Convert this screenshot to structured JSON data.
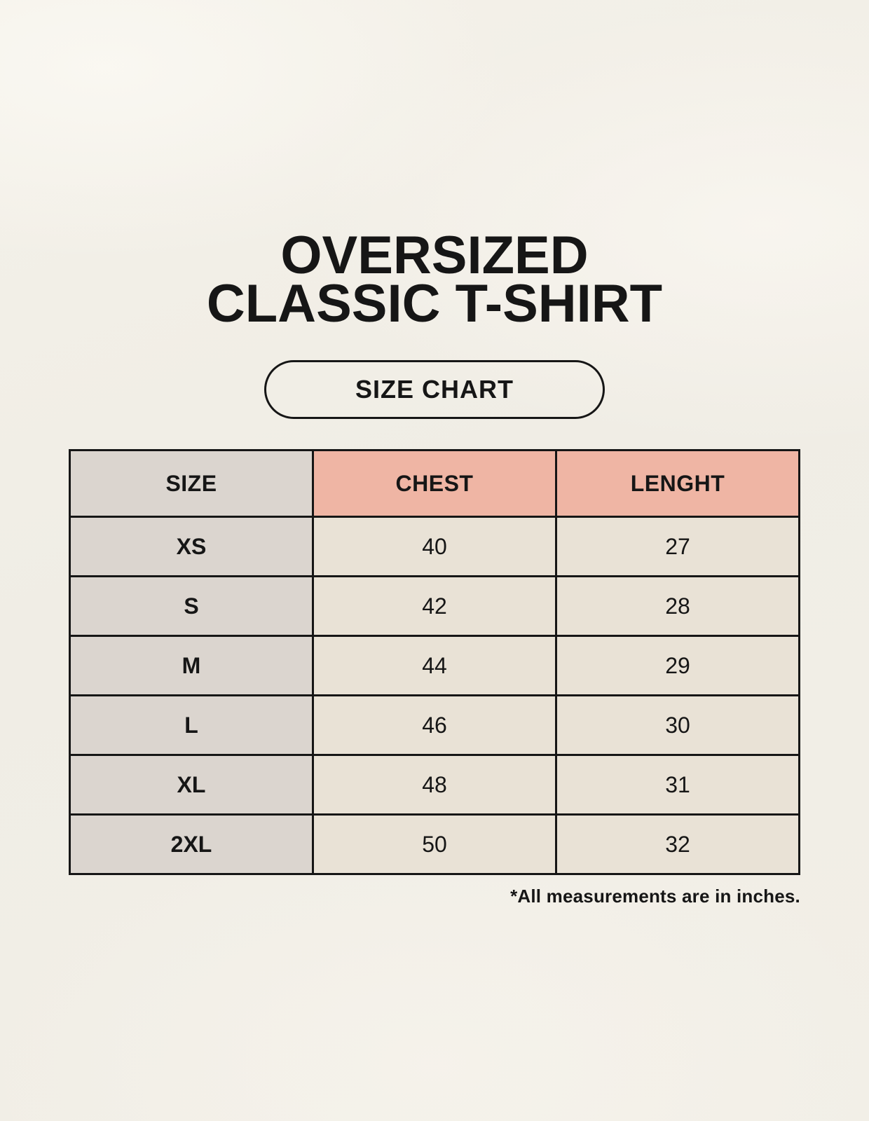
{
  "title": {
    "line1": "OVERSIZED",
    "line2": "CLASSIC T-SHIRT"
  },
  "size_chart_button": {
    "label": "SIZE CHART"
  },
  "size_table": {
    "columns": [
      "SIZE",
      "CHEST",
      "LENGHT"
    ],
    "rows": [
      {
        "size": "XS",
        "chest": "40",
        "lenght": "27"
      },
      {
        "size": "S",
        "chest": "42",
        "lenght": "28"
      },
      {
        "size": "M",
        "chest": "44",
        "lenght": "29"
      },
      {
        "size": "L",
        "chest": "46",
        "lenght": "30"
      },
      {
        "size": "XL",
        "chest": "48",
        "lenght": "31"
      },
      {
        "size": "2XL",
        "chest": "50",
        "lenght": "32"
      }
    ],
    "footnote": "*All measurements are in inches."
  },
  "colors": {
    "page_background": "#f1eee6",
    "size_column_bg": "#dbd5cf",
    "measure_header_bg": "#efb5a4",
    "data_cell_bg": "#e9e2d6",
    "table_border": "#161616",
    "text": "#161616"
  }
}
